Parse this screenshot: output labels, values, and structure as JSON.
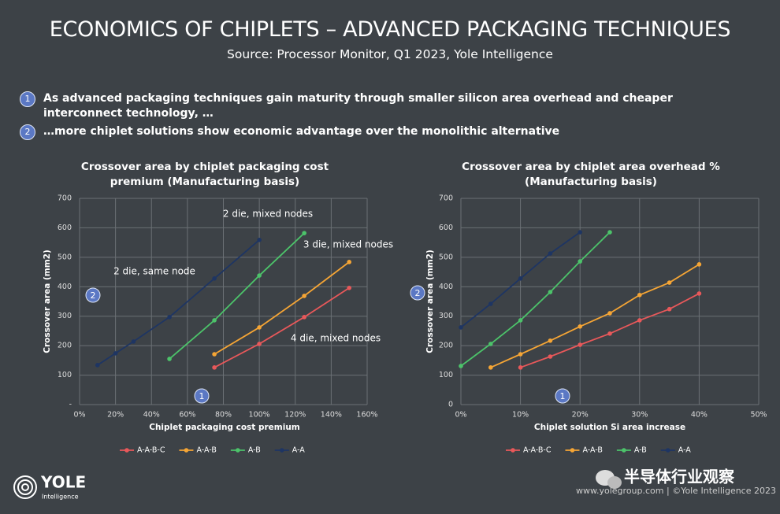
{
  "header": {
    "title": "ECONOMICS OF CHIPLETS – ADVANCED PACKAGING TECHNIQUES",
    "subtitle": "Source: Processor Monitor, Q1 2023, Yole Intelligence"
  },
  "bullets": [
    {
      "number": "1",
      "text": "As advanced packaging techniques gain maturity through smaller silicon area overhead and cheaper interconnect technology, …"
    },
    {
      "number": "2",
      "text": "…more chiplet solutions show economic advantage over the monolithic alternative"
    }
  ],
  "chart_data": [
    {
      "type": "line",
      "title": "Crossover area by chiplet packaging cost premium (Manufacturing basis)",
      "x_label": "Chiplet packaging cost premium",
      "y_label": "Crossover area (mm2)",
      "xlim": [
        0,
        160
      ],
      "xticks": [
        {
          "value": 0,
          "label": "0%"
        },
        {
          "value": 20,
          "label": "20%"
        },
        {
          "value": 40,
          "label": "40%"
        },
        {
          "value": 60,
          "label": "60%"
        },
        {
          "value": 80,
          "label": "80%"
        },
        {
          "value": 100,
          "label": "100%"
        },
        {
          "value": 120,
          "label": "120%"
        },
        {
          "value": 140,
          "label": "140%"
        },
        {
          "value": 160,
          "label": "160%"
        }
      ],
      "ylim": [
        0,
        700
      ],
      "yticks": [
        {
          "value": 0,
          "label": "-"
        },
        100,
        200,
        300,
        400,
        500,
        600,
        700
      ],
      "grid": true,
      "legend": "bottom",
      "annotations": [
        "2 die, mixed nodes",
        "3 die, mixed nodes",
        "2 die, same node",
        "4 die, mixed nodes",
        "2",
        "1"
      ],
      "series": [
        {
          "name": "A-A-B-C",
          "color": "#e8585a",
          "x": [
            75,
            100,
            125,
            150
          ],
          "values": [
            126,
            206,
            297,
            396
          ]
        },
        {
          "name": "A-A-B",
          "color": "#f5a535",
          "x": [
            75,
            100,
            125,
            150
          ],
          "values": [
            171,
            262,
            369,
            484
          ]
        },
        {
          "name": "A-B",
          "color": "#4cc36a",
          "x": [
            50,
            75,
            100,
            125
          ],
          "values": [
            155,
            286,
            438,
            582
          ]
        },
        {
          "name": "A-A",
          "color": "#1e3563",
          "x": [
            10,
            20,
            30,
            50,
            75,
            100
          ],
          "values": [
            134,
            174,
            214,
            297,
            428,
            559
          ]
        }
      ]
    },
    {
      "type": "line",
      "title": "Crossover area by chiplet area overhead % (Manufacturing basis)",
      "x_label": "Chiplet solution Si area increase",
      "y_label": "Crossover area (mm2)",
      "xlim": [
        0,
        50
      ],
      "xticks": [
        {
          "value": 0,
          "label": "0%"
        },
        {
          "value": 10,
          "label": "10%"
        },
        {
          "value": 20,
          "label": "20%"
        },
        {
          "value": 30,
          "label": "30%"
        },
        {
          "value": 40,
          "label": "40%"
        },
        {
          "value": 50,
          "label": "50%"
        }
      ],
      "ylim": [
        0,
        700
      ],
      "yticks": [
        0,
        100,
        200,
        300,
        400,
        500,
        600,
        700
      ],
      "grid": true,
      "legend": "bottom",
      "annotations": [
        "2",
        "1"
      ],
      "series": [
        {
          "name": "A-A-B-C",
          "color": "#e8585a",
          "x": [
            10,
            15,
            20,
            25,
            30,
            35,
            40
          ],
          "values": [
            126,
            163,
            203,
            241,
            286,
            324,
            377
          ]
        },
        {
          "name": "A-A-B",
          "color": "#f5a535",
          "x": [
            5,
            10,
            15,
            20,
            25,
            30,
            35,
            40
          ],
          "values": [
            126,
            171,
            217,
            265,
            310,
            372,
            414,
            476
          ]
        },
        {
          "name": "A-B",
          "color": "#4cc36a",
          "x": [
            0,
            5,
            10,
            15,
            20,
            25
          ],
          "values": [
            131,
            206,
            286,
            382,
            486,
            585
          ]
        },
        {
          "name": "A-A",
          "color": "#1e3563",
          "x": [
            0,
            5,
            10,
            15,
            20
          ],
          "values": [
            262,
            342,
            428,
            513,
            585
          ]
        }
      ]
    }
  ],
  "footer": {
    "logo": "YOLE",
    "logo_sub": "Intelligence",
    "watermark": "半导体行业观察",
    "credit": "www.yolegroup.com | ©Yole Intelligence 2023"
  }
}
